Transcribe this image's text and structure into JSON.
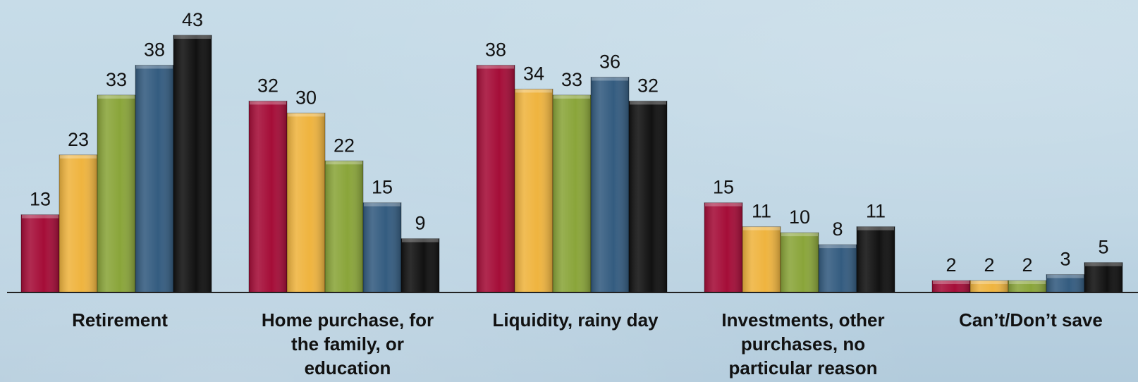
{
  "chart_data": {
    "type": "bar",
    "categories": [
      [
        "Retirement"
      ],
      [
        "Home purchase, for",
        "the family, or",
        "education"
      ],
      [
        "Liquidity, rainy day"
      ],
      [
        "Investments, other",
        "purchases, no",
        "particular reason"
      ],
      [
        "Can’t/Don’t save"
      ]
    ],
    "series": [
      {
        "values": [
          13,
          32,
          38,
          15,
          2
        ],
        "color": "#a50d38"
      },
      {
        "values": [
          23,
          30,
          34,
          11,
          2
        ],
        "color": "#efb43f"
      },
      {
        "values": [
          33,
          22,
          33,
          10,
          2
        ],
        "color": "#8aa53a"
      },
      {
        "values": [
          38,
          15,
          36,
          8,
          3
        ],
        "color": "#345c80"
      },
      {
        "values": [
          43,
          9,
          32,
          11,
          5
        ],
        "color": "#111111"
      }
    ],
    "ylim": [
      0,
      43
    ],
    "grid": false,
    "legend": "none",
    "data_labels": true
  }
}
